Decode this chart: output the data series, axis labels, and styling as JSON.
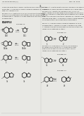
{
  "bg": "#e8e8e4",
  "fg": "#222222",
  "gray": "#777777",
  "lgray": "#bbbbbb",
  "header_left": "US 8,802,666 B2 (1)",
  "header_right": "May 19, 2013",
  "page_num": "31"
}
